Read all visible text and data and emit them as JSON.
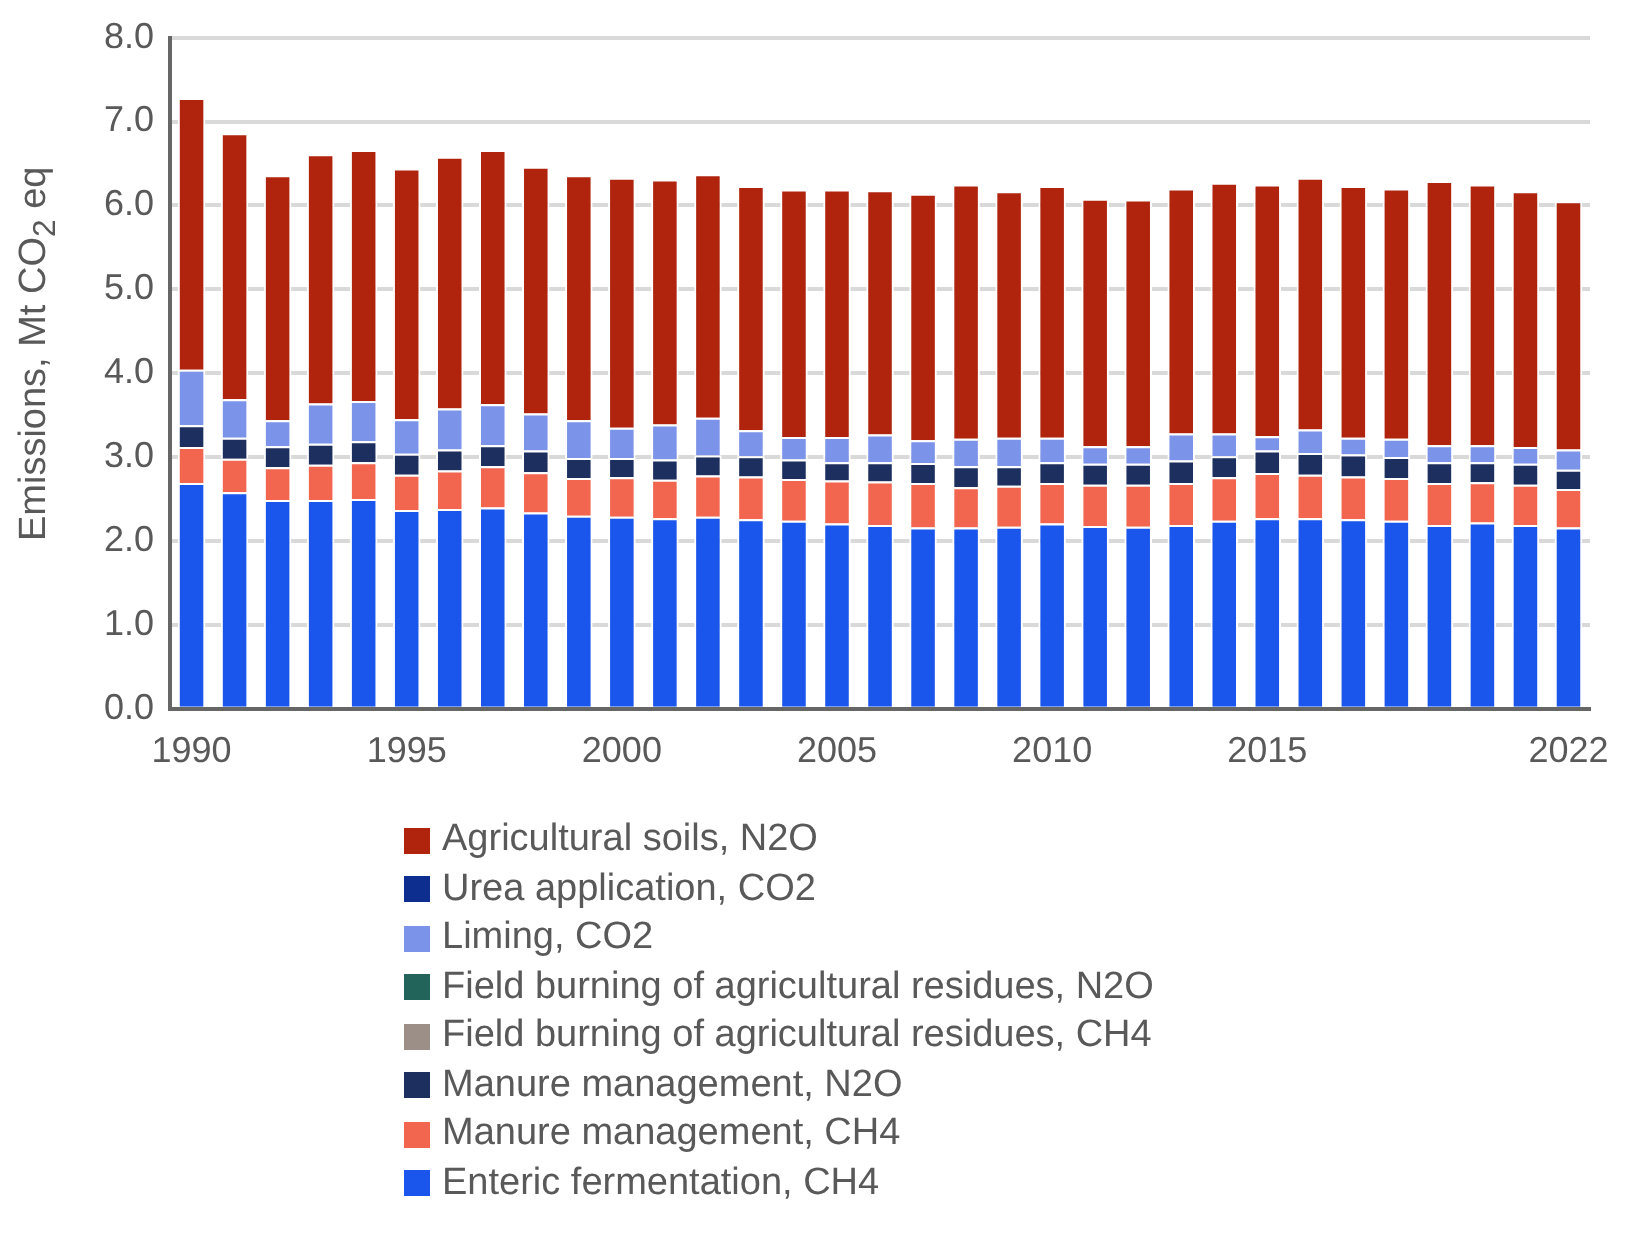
{
  "chart_data": {
    "type": "bar",
    "stacked": true,
    "ylabel": "Emissions, Mt CO$_{2}$ eq",
    "categories": [
      "1990",
      null,
      null,
      null,
      null,
      "1995",
      null,
      null,
      null,
      null,
      "2000",
      null,
      null,
      null,
      null,
      "2005",
      null,
      null,
      null,
      null,
      "2010",
      null,
      null,
      null,
      null,
      "2015",
      null,
      null,
      null,
      null,
      null,
      null,
      "2022"
    ],
    "ylim": [
      0,
      8
    ],
    "yticks": [
      {
        "value": 0,
        "label": "0.0"
      },
      {
        "value": 1,
        "label": "1.0"
      },
      {
        "value": 2,
        "label": "2.0"
      },
      {
        "value": 3,
        "label": "3.0"
      },
      {
        "value": 4,
        "label": "4.0"
      },
      {
        "value": 5,
        "label": "5.0"
      },
      {
        "value": 6,
        "label": "6.0"
      },
      {
        "value": 7,
        "label": "7.0"
      },
      {
        "value": 8,
        "label": "8.0"
      }
    ],
    "grid": "y",
    "legend": "bottom",
    "series": [
      {
        "name": "Enteric fermentation, CH4",
        "color": "#1a56eb",
        "values": [
          2.69,
          2.58,
          2.49,
          2.49,
          2.5,
          2.37,
          2.38,
          2.4,
          2.34,
          2.3,
          2.29,
          2.27,
          2.29,
          2.26,
          2.24,
          2.21,
          2.19,
          2.16,
          2.16,
          2.17,
          2.21,
          2.18,
          2.17,
          2.19,
          2.24,
          2.27,
          2.27,
          2.26,
          2.24,
          2.19,
          2.22,
          2.19,
          2.16
        ]
      },
      {
        "name": "Manure management, CH4",
        "color": "#f2654f",
        "values": [
          0.43,
          0.4,
          0.39,
          0.42,
          0.44,
          0.42,
          0.46,
          0.49,
          0.48,
          0.45,
          0.47,
          0.46,
          0.49,
          0.51,
          0.5,
          0.51,
          0.52,
          0.53,
          0.48,
          0.49,
          0.48,
          0.49,
          0.5,
          0.5,
          0.52,
          0.54,
          0.52,
          0.51,
          0.51,
          0.5,
          0.48,
          0.48,
          0.46
        ]
      },
      {
        "name": "Manure management, N2O",
        "color": "#1c2f5e",
        "values": [
          0.26,
          0.25,
          0.25,
          0.25,
          0.25,
          0.25,
          0.25,
          0.25,
          0.26,
          0.24,
          0.23,
          0.24,
          0.24,
          0.24,
          0.23,
          0.22,
          0.23,
          0.24,
          0.25,
          0.23,
          0.25,
          0.25,
          0.25,
          0.27,
          0.25,
          0.27,
          0.26,
          0.26,
          0.25,
          0.25,
          0.24,
          0.25,
          0.23
        ]
      },
      {
        "name": "Field burning of agricultural residues, CH4",
        "color": "#9c8f87",
        "values": [
          0,
          0,
          0,
          0,
          0,
          0,
          0,
          0,
          0,
          0,
          0,
          0,
          0,
          0,
          0,
          0,
          0,
          0,
          0,
          0,
          0,
          0,
          0,
          0,
          0,
          0,
          0,
          0,
          0,
          0,
          0,
          0,
          0
        ]
      },
      {
        "name": "Field burning of agricultural residues, N2O",
        "color": "#23645a",
        "values": [
          0,
          0,
          0,
          0,
          0,
          0,
          0,
          0,
          0,
          0,
          0,
          0,
          0,
          0,
          0,
          0,
          0,
          0,
          0,
          0,
          0,
          0,
          0,
          0,
          0,
          0,
          0,
          0,
          0,
          0,
          0,
          0,
          0
        ]
      },
      {
        "name": "Liming, CO2",
        "color": "#7b93e8",
        "values": [
          0.66,
          0.46,
          0.31,
          0.48,
          0.48,
          0.41,
          0.49,
          0.49,
          0.44,
          0.45,
          0.36,
          0.42,
          0.45,
          0.31,
          0.27,
          0.3,
          0.33,
          0.27,
          0.33,
          0.34,
          0.29,
          0.21,
          0.21,
          0.32,
          0.27,
          0.17,
          0.28,
          0.2,
          0.22,
          0.2,
          0.2,
          0.2,
          0.24
        ]
      },
      {
        "name": "Urea application, CO2",
        "color": "#0d2e8f",
        "values": [
          0,
          0,
          0,
          0,
          0,
          0,
          0,
          0,
          0,
          0,
          0,
          0,
          0,
          0,
          0,
          0,
          0,
          0,
          0,
          0,
          0,
          0,
          0,
          0,
          0,
          0,
          0,
          0,
          0,
          0,
          0,
          0,
          0
        ]
      },
      {
        "name": "Agricultural soils, N2O",
        "color": "#b0240e",
        "values": [
          3.24,
          3.17,
          2.92,
          2.97,
          2.99,
          2.99,
          3.0,
          3.03,
          2.94,
          2.92,
          2.98,
          2.92,
          2.9,
          2.91,
          2.95,
          2.95,
          2.91,
          2.94,
          3.03,
          2.94,
          3.0,
          2.95,
          2.94,
          2.92,
          2.99,
          3.0,
          3.0,
          3.0,
          2.98,
          3.15,
          3.11,
          3.05,
          2.96
        ]
      }
    ]
  }
}
